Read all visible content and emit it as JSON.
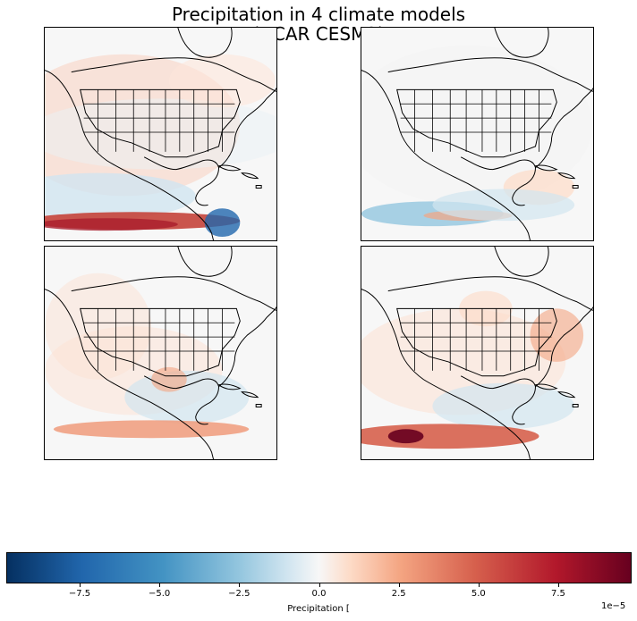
{
  "figure": {
    "title_line1": "Precipitation in 4 climate models",
    "title_line2": "(NCAR CESM2)"
  },
  "panels": [
    {
      "position": "top-left",
      "features": [
        "coastlines",
        "us-state-borders"
      ],
      "pattern": "strong positive band near equator in Pacific, blue near Central America"
    },
    {
      "position": "top-right",
      "features": [
        "coastlines",
        "us-state-borders"
      ],
      "pattern": "mild; blue band off Central America Pacific"
    },
    {
      "position": "bottom-left",
      "features": [
        "coastlines",
        "us-state-borders"
      ],
      "pattern": "orange band near equator, blue Gulf/Caribbean"
    },
    {
      "position": "bottom-right",
      "features": [
        "coastlines",
        "us-state-borders"
      ],
      "pattern": "dark red band in eastern Pacific ITCZ"
    }
  ],
  "colorbar": {
    "colormap": "RdBu_r",
    "label": "Precipitation [",
    "offset_text": "1e−5",
    "range": [
      -9.8,
      9.8
    ],
    "ticks": [
      "−7.5",
      "−5.0",
      "−2.5",
      "0.0",
      "2.5",
      "5.0",
      "7.5"
    ],
    "tick_values": [
      -7.5,
      -5.0,
      -2.5,
      0.0,
      2.5,
      5.0,
      7.5
    ],
    "colors": [
      "#053061",
      "#2166ac",
      "#4393c3",
      "#92c5de",
      "#d1e5f0",
      "#f7f7f7",
      "#fddbc7",
      "#f4a582",
      "#d6604d",
      "#b2182b",
      "#67001f"
    ]
  }
}
